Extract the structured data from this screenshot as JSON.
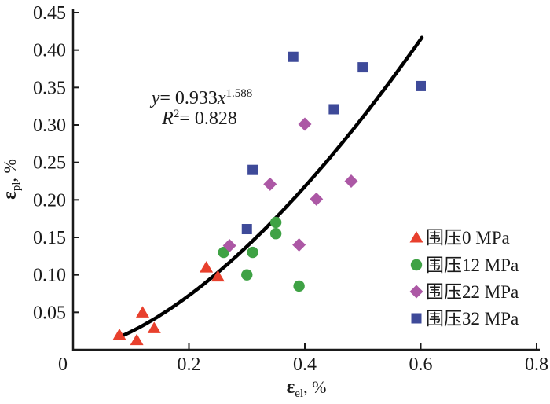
{
  "figure": {
    "background": "#ffffff",
    "equation": {
      "var_y": "y",
      "body": "= 0.933",
      "var_x": "x",
      "exponent": "1.588",
      "r_var": "R",
      "r_exp": "2",
      "r_body": "= 0.828"
    },
    "axis_labels": {
      "y_symbol": "ε",
      "y_sub": "pl",
      "y_unit": ", %",
      "x_symbol": "ε",
      "x_sub": "el",
      "x_unit": ", %"
    }
  },
  "chart_data": {
    "type": "scatter",
    "title": "",
    "xlabel": "ε_el, %",
    "ylabel": "ε_pl, %",
    "xlim": [
      0,
      0.8
    ],
    "ylim": [
      0,
      0.45
    ],
    "grid": false,
    "x_tick_values": [
      0,
      0.2,
      0.4,
      0.6,
      0.8
    ],
    "x_tick_labels": [
      "0",
      "0.2",
      "0.4",
      "0.6",
      "0.8"
    ],
    "y_tick_values": [
      0.05,
      0.1,
      0.15,
      0.2,
      0.25,
      0.3,
      0.35,
      0.4,
      0.45
    ],
    "y_tick_labels": [
      "0.05",
      "0.10",
      "0.15",
      "0.20",
      "0.25",
      "0.30",
      "0.35",
      "0.40",
      "0.45"
    ],
    "legend_position": "inside-right-center",
    "series": [
      {
        "name": "围压0 MPa",
        "marker": "triangle",
        "color": "#e8402d",
        "points": [
          [
            0.08,
            0.02
          ],
          [
            0.11,
            0.013
          ],
          [
            0.12,
            0.05
          ],
          [
            0.14,
            0.029
          ],
          [
            0.23,
            0.11
          ],
          [
            0.25,
            0.098
          ]
        ]
      },
      {
        "name": "围压12 MPa",
        "marker": "circle",
        "color": "#3fa245",
        "points": [
          [
            0.26,
            0.13
          ],
          [
            0.3,
            0.1
          ],
          [
            0.31,
            0.13
          ],
          [
            0.35,
            0.155
          ],
          [
            0.35,
            0.17
          ],
          [
            0.39,
            0.085
          ]
        ]
      },
      {
        "name": "围压22 MPa",
        "marker": "diamond",
        "color": "#ac58a5",
        "points": [
          [
            0.27,
            0.139
          ],
          [
            0.34,
            0.221
          ],
          [
            0.39,
            0.14
          ],
          [
            0.4,
            0.301
          ],
          [
            0.42,
            0.201
          ],
          [
            0.48,
            0.225
          ]
        ]
      },
      {
        "name": "围压32 MPa",
        "marker": "square",
        "color": "#3e4a99",
        "points": [
          [
            0.3,
            0.161
          ],
          [
            0.31,
            0.24
          ],
          [
            0.38,
            0.391
          ],
          [
            0.45,
            0.321
          ],
          [
            0.5,
            0.377
          ],
          [
            0.6,
            0.352
          ]
        ]
      }
    ],
    "fit_curve": {
      "equation": "y = 0.933x^1.588",
      "coefficient": 0.933,
      "exponent": 1.588,
      "r_squared": 0.828,
      "x_range": [
        0.08,
        0.602
      ],
      "color": "#000000"
    }
  }
}
